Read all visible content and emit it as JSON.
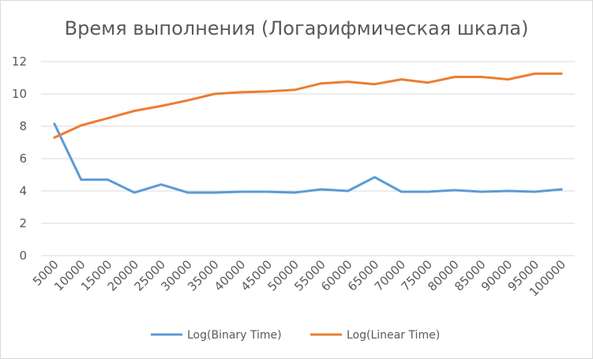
{
  "chart_data": {
    "type": "line",
    "title": "Время выполнения (Логарифмическая шкала)",
    "xlabel": "",
    "ylabel": "",
    "categories": [
      "5000",
      "10000",
      "15000",
      "20000",
      "25000",
      "30000",
      "35000",
      "40000",
      "45000",
      "50000",
      "55000",
      "60000",
      "65000",
      "70000",
      "75000",
      "80000",
      "85000",
      "90000",
      "95000",
      "100000"
    ],
    "yticks": [
      "0",
      "2",
      "4",
      "6",
      "8",
      "10",
      "12"
    ],
    "ylim": [
      0,
      12
    ],
    "grid": true,
    "legend": "bottom",
    "series": [
      {
        "name": "Log(Binary Time)",
        "color": "#5b9bd5",
        "values": [
          8.15,
          4.7,
          4.7,
          3.9,
          4.4,
          3.9,
          3.9,
          3.95,
          3.95,
          3.9,
          4.1,
          4.0,
          4.85,
          3.95,
          3.95,
          4.05,
          3.95,
          4.0,
          3.95,
          4.1
        ]
      },
      {
        "name": "Log(Linear Time)",
        "color": "#ed7d31",
        "values": [
          7.3,
          8.05,
          8.5,
          8.95,
          9.25,
          9.6,
          10.0,
          10.1,
          10.15,
          10.25,
          10.65,
          10.75,
          10.6,
          10.9,
          10.7,
          11.05,
          11.05,
          10.9,
          11.25,
          11.25
        ]
      }
    ]
  }
}
